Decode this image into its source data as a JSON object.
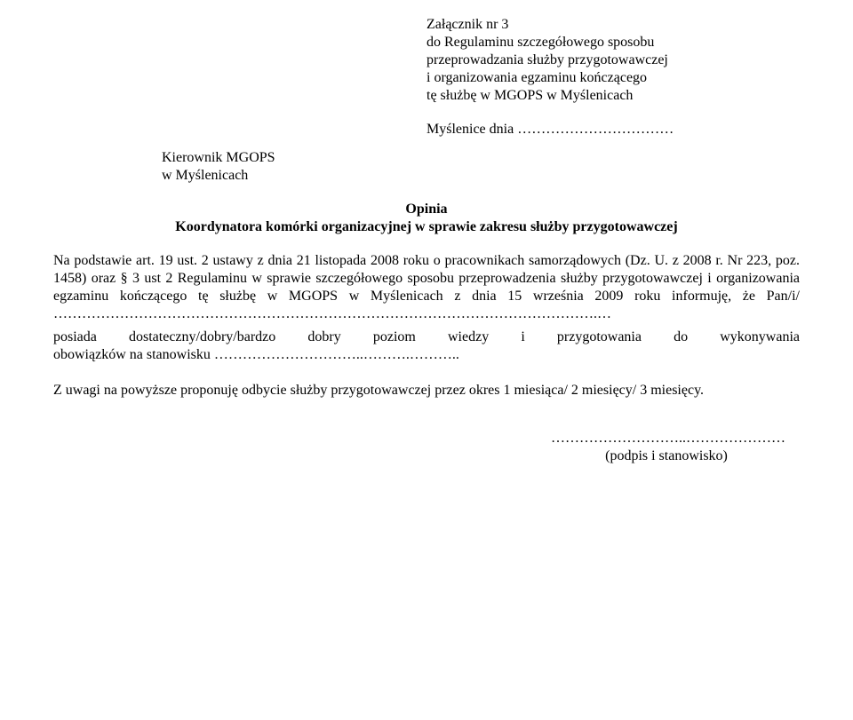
{
  "header": {
    "l1": "Załącznik nr 3",
    "l2": "do Regulaminu szczegółowego sposobu",
    "l3": "przeprowadzania służby przygotowawczej",
    "l4": "i organizowania egzaminu kończącego",
    "l5": "tę służbę w MGOPS w Myślenicach"
  },
  "date_prefix": "Myślenice dnia",
  "addressee": {
    "l1": "Kierownik MGOPS",
    "l2": "w Myślenicach"
  },
  "title": "Opinia",
  "subtitle": "Koordynatora komórki organizacyjnej w sprawie zakresu służby przygotowawczej",
  "body1": "Na podstawie art. 19 ust. 2 ustawy z dnia 21 listopada 2008 roku o pracownikach samorządowych (Dz. U. z 2008 r. Nr 223, poz. 1458) oraz § 3 ust 2 Regulaminu w sprawie szczegółowego sposobu przeprowadzenia służby przygotowawczej i organizowania egzaminu kończącego tę służbę w MGOPS w Myślenicach z dnia 15 września 2009 roku informuję, że Pan/i/ …………………………………………………………………………………………………….…",
  "body2a": "posiada dostateczny/dobry/bardzo dobry poziom wiedzy i przygotowania do wykonywania",
  "body2b": "obowiązków na stanowisku …………………………..……….………..",
  "body3": "Z uwagi na powyższe proponuję odbycie służby przygotowawczej przez okres 1 miesiąca/ 2 miesięcy/ 3 miesięcy.",
  "sig_dots": "………………………..…………………",
  "sig_label": "(podpis i stanowisko)"
}
